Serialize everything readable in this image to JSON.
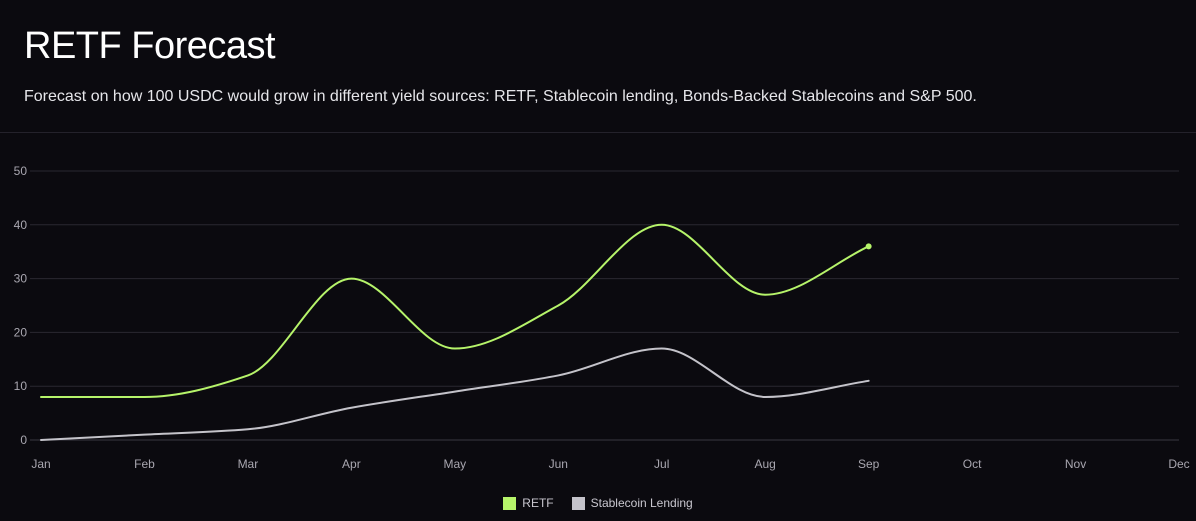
{
  "header": {
    "title": "RETF Forecast",
    "subtitle": "Forecast on how 100 USDC would grow in different yield sources: RETF, Stablecoin lending, Bonds-Backed Stablecoins and S&P 500."
  },
  "colors": {
    "background": "#0b0a0f",
    "grid": "#2a2830",
    "retf": "#b6f46a",
    "stablecoin": "#c4c3ca"
  },
  "chart_data": {
    "type": "line",
    "title": "",
    "xlabel": "",
    "ylabel": "",
    "categories": [
      "Jan",
      "Feb",
      "Mar",
      "Apr",
      "May",
      "Jun",
      "Jul",
      "Aug",
      "Sep",
      "Oct",
      "Nov",
      "Dec"
    ],
    "ylim": [
      0,
      50
    ],
    "yticks": [
      0,
      10,
      20,
      30,
      40,
      50
    ],
    "grid": true,
    "legend_position": "bottom-center",
    "series": [
      {
        "name": "RETF",
        "color": "#b6f46a",
        "values": [
          8,
          8,
          12,
          30,
          17,
          25,
          40,
          27,
          36,
          null,
          null,
          null
        ]
      },
      {
        "name": "Stablecoin Lending",
        "color": "#c4c3ca",
        "values": [
          0,
          1,
          2,
          6,
          9,
          12,
          17,
          8,
          11,
          null,
          null,
          null
        ]
      }
    ]
  }
}
